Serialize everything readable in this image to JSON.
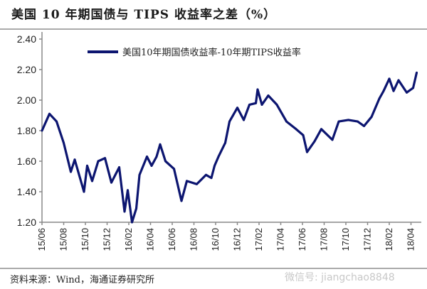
{
  "title": "美国 10 年期国债与 TIPS 收益率之差（%）",
  "source": "资料来源：Wind，海通证券研究所",
  "watermark": "微信号: jiangchao8848",
  "chart_data": {
    "type": "line",
    "title": "美国 10 年期国债与 TIPS 收益率之差（%）",
    "xlabel": "",
    "ylabel": "",
    "ylim": [
      1.2,
      2.4
    ],
    "yticks": [
      "1.20",
      "1.40",
      "1.60",
      "1.80",
      "2.00",
      "2.20",
      "2.40"
    ],
    "xlim": [
      "2015-06-01",
      "2018-04-30"
    ],
    "xticks": [
      "15/06",
      "15/08",
      "15/10",
      "15/12",
      "16/02",
      "16/04",
      "16/06",
      "16/08",
      "16/10",
      "16/12",
      "17/02",
      "17/04",
      "17/06",
      "17/08",
      "17/10",
      "17/12",
      "18/02",
      "18/04"
    ],
    "grid": false,
    "legend": "top",
    "color": "#0c1570",
    "series": [
      {
        "name": "美国10年期国债收益率-10年期TIPS收益率",
        "x": [
          "2015-06-01",
          "2015-06-22",
          "2015-07-12",
          "2015-08-01",
          "2015-08-21",
          "2015-09-01",
          "2015-09-27",
          "2015-10-06",
          "2015-10-20",
          "2015-11-06",
          "2015-11-25",
          "2015-12-13",
          "2016-01-04",
          "2016-01-19",
          "2016-01-28",
          "2016-02-09",
          "2016-02-21",
          "2016-03-01",
          "2016-03-22",
          "2016-04-04",
          "2016-04-18",
          "2016-04-28",
          "2016-05-13",
          "2016-06-06",
          "2016-06-27",
          "2016-07-12",
          "2016-08-09",
          "2016-09-04",
          "2016-09-19",
          "2016-09-28",
          "2016-10-09",
          "2016-10-28",
          "2016-11-09",
          "2016-12-01",
          "2016-12-19",
          "2017-01-04",
          "2017-01-22",
          "2017-01-27",
          "2017-02-08",
          "2017-02-26",
          "2017-03-22",
          "2017-04-18",
          "2017-05-15",
          "2017-06-04",
          "2017-06-15",
          "2017-07-06",
          "2017-07-25",
          "2017-08-25",
          "2017-09-12",
          "2017-10-09",
          "2017-11-04",
          "2017-11-22",
          "2017-12-13",
          "2018-01-04",
          "2018-01-16",
          "2018-02-01",
          "2018-02-13",
          "2018-02-27",
          "2018-03-22",
          "2018-04-09",
          "2018-04-19"
        ],
        "values": [
          1.8,
          1.91,
          1.86,
          1.72,
          1.53,
          1.61,
          1.4,
          1.57,
          1.47,
          1.6,
          1.62,
          1.46,
          1.56,
          1.27,
          1.41,
          1.2,
          1.29,
          1.51,
          1.63,
          1.57,
          1.63,
          1.71,
          1.6,
          1.55,
          1.34,
          1.47,
          1.45,
          1.51,
          1.49,
          1.57,
          1.63,
          1.72,
          1.86,
          1.95,
          1.87,
          1.97,
          1.98,
          2.07,
          1.97,
          2.03,
          1.97,
          1.86,
          1.81,
          1.77,
          1.66,
          1.73,
          1.81,
          1.74,
          1.86,
          1.87,
          1.86,
          1.83,
          1.89,
          2.01,
          2.06,
          2.14,
          2.06,
          2.13,
          2.05,
          2.08,
          2.18
        ]
      }
    ]
  }
}
